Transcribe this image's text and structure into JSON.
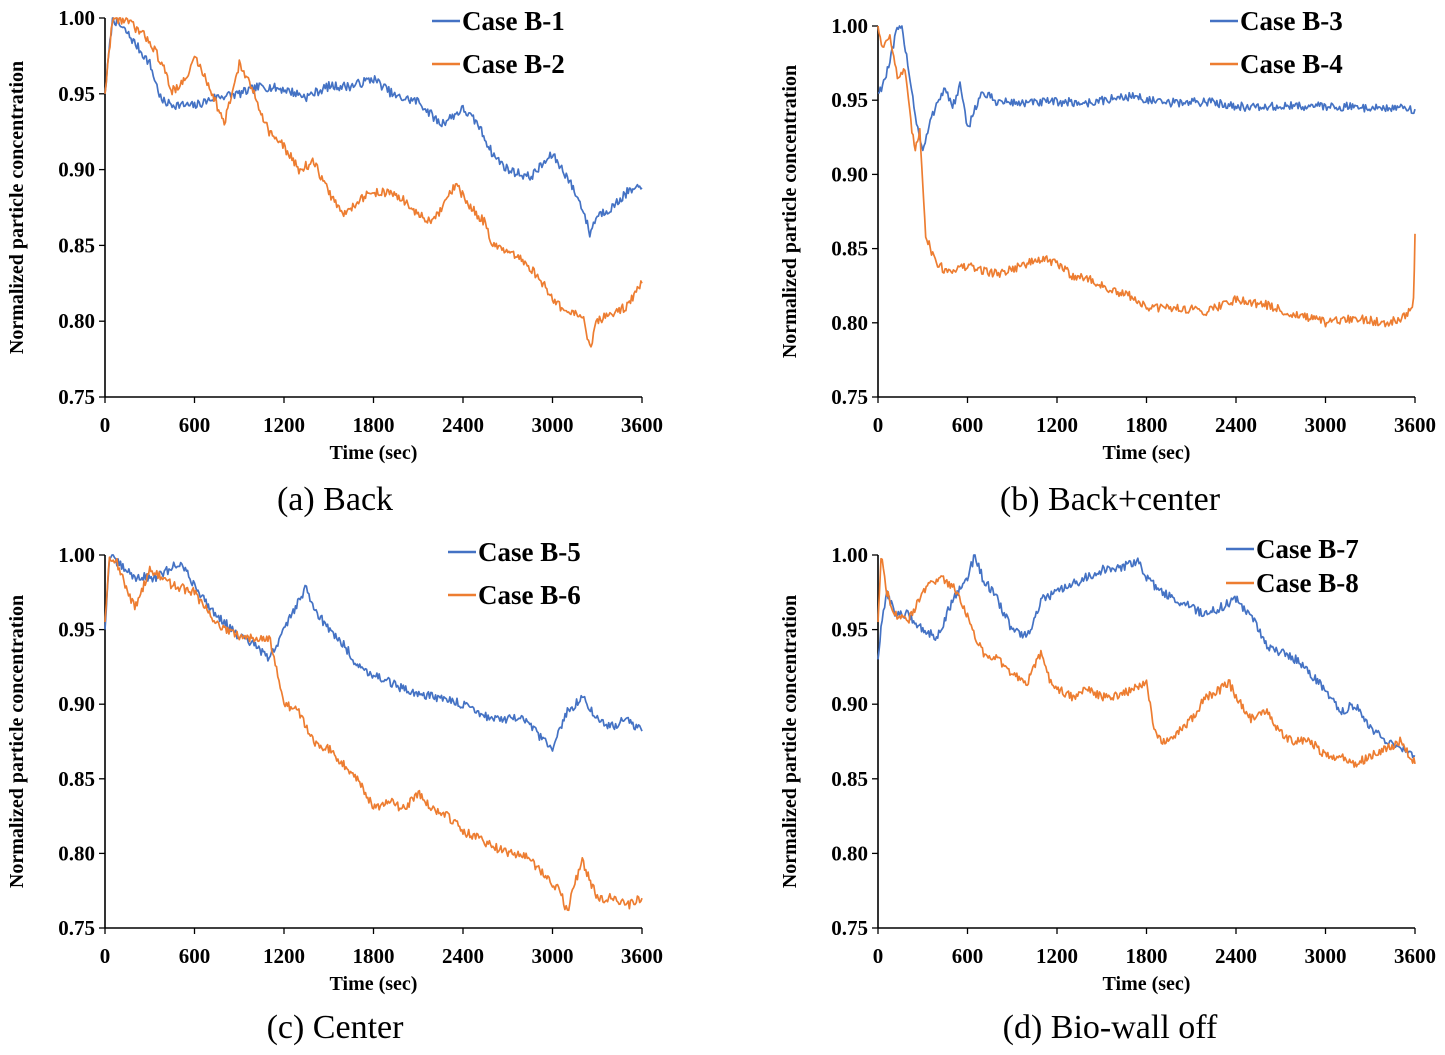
{
  "colors": {
    "blue": "#4472C4",
    "orange": "#ED7D31"
  },
  "chart_data": [
    {
      "type": "line",
      "caption": "(a) Back",
      "xlabel": "Time (sec)",
      "ylabel": "Normalized particle concentration",
      "xlim": [
        0,
        3600
      ],
      "ylim": [
        0.75,
        1.0
      ],
      "xticks": [
        "0",
        "600",
        "1200",
        "1800",
        "2400",
        "3000",
        "3600"
      ],
      "yticks": [
        "0.75",
        "0.80",
        "0.85",
        "0.90",
        "0.95",
        "1.00"
      ],
      "legend_position": "top-right",
      "series": [
        {
          "name": "Case B-1",
          "color": "#4472C4",
          "x": [
            0,
            50,
            150,
            300,
            380,
            450,
            600,
            750,
            900,
            1050,
            1200,
            1350,
            1500,
            1650,
            1800,
            1950,
            2100,
            2250,
            2400,
            2500,
            2600,
            2700,
            2850,
            3000,
            3100,
            3200,
            3250,
            3300,
            3400,
            3500,
            3600
          ],
          "y": [
            0.95,
            1.0,
            0.99,
            0.97,
            0.945,
            0.943,
            0.942,
            0.948,
            0.95,
            0.955,
            0.953,
            0.948,
            0.955,
            0.955,
            0.96,
            0.948,
            0.945,
            0.93,
            0.94,
            0.93,
            0.91,
            0.9,
            0.895,
            0.91,
            0.895,
            0.875,
            0.858,
            0.87,
            0.875,
            0.885,
            0.888
          ]
        },
        {
          "name": "Case B-2",
          "color": "#ED7D31",
          "x": [
            0,
            50,
            150,
            300,
            380,
            450,
            550,
            600,
            700,
            800,
            900,
            1000,
            1100,
            1200,
            1300,
            1400,
            1500,
            1600,
            1700,
            1800,
            1900,
            2000,
            2100,
            2200,
            2350,
            2450,
            2550,
            2600,
            2700,
            2800,
            2900,
            3000,
            3100,
            3200,
            3250,
            3300,
            3400,
            3500,
            3600
          ],
          "y": [
            0.95,
            1.0,
            0.998,
            0.985,
            0.97,
            0.952,
            0.96,
            0.975,
            0.955,
            0.93,
            0.97,
            0.95,
            0.925,
            0.915,
            0.9,
            0.905,
            0.885,
            0.87,
            0.88,
            0.885,
            0.885,
            0.88,
            0.87,
            0.865,
            0.89,
            0.875,
            0.865,
            0.85,
            0.845,
            0.84,
            0.83,
            0.815,
            0.805,
            0.805,
            0.782,
            0.8,
            0.805,
            0.81,
            0.825
          ]
        }
      ]
    },
    {
      "type": "line",
      "caption": "(b) Back+center",
      "xlabel": "Time (sec)",
      "ylabel": "Normalized particle concentration",
      "xlim": [
        0,
        3600
      ],
      "ylim": [
        0.75,
        1.0
      ],
      "xticks": [
        "0",
        "600",
        "1200",
        "1800",
        "2400",
        "3000",
        "3600"
      ],
      "yticks": [
        "0.75",
        "0.80",
        "0.85",
        "0.90",
        "0.95",
        "1.00"
      ],
      "legend_position": "top-right",
      "series": [
        {
          "name": "Case B-3",
          "color": "#4472C4",
          "x": [
            0,
            30,
            80,
            120,
            160,
            200,
            250,
            300,
            350,
            400,
            450,
            500,
            550,
            600,
            650,
            700,
            800,
            1000,
            1200,
            1400,
            1700,
            1900,
            2200,
            2500,
            2800,
            3000,
            3300,
            3600
          ],
          "y": [
            0.955,
            0.96,
            0.975,
            0.995,
            1.0,
            0.975,
            0.94,
            0.915,
            0.935,
            0.95,
            0.958,
            0.945,
            0.96,
            0.93,
            0.945,
            0.955,
            0.949,
            0.948,
            0.949,
            0.948,
            0.953,
            0.948,
            0.949,
            0.945,
            0.946,
            0.946,
            0.945,
            0.944
          ]
        },
        {
          "name": "Case B-4",
          "color": "#ED7D31",
          "x": [
            0,
            30,
            80,
            130,
            180,
            220,
            250,
            280,
            300,
            320,
            350,
            400,
            450,
            600,
            800,
            1000,
            1100,
            1200,
            1300,
            1400,
            1500,
            1600,
            1700,
            1800,
            2000,
            2200,
            2400,
            2600,
            2800,
            2900,
            3000,
            3200,
            3400,
            3550,
            3590,
            3600
          ],
          "y": [
            1.0,
            0.985,
            0.995,
            0.965,
            0.97,
            0.935,
            0.915,
            0.93,
            0.895,
            0.86,
            0.85,
            0.84,
            0.835,
            0.838,
            0.833,
            0.84,
            0.843,
            0.84,
            0.832,
            0.83,
            0.825,
            0.82,
            0.818,
            0.81,
            0.81,
            0.808,
            0.816,
            0.812,
            0.805,
            0.803,
            0.8,
            0.803,
            0.8,
            0.805,
            0.815,
            0.86
          ]
        }
      ]
    },
    {
      "type": "line",
      "caption": "(c) Center",
      "xlabel": "Time (sec)",
      "ylabel": "Normalized particle concentration",
      "xlim": [
        0,
        3600
      ],
      "ylim": [
        0.75,
        1.0
      ],
      "xticks": [
        "0",
        "600",
        "1200",
        "1800",
        "2400",
        "3000",
        "3600"
      ],
      "yticks": [
        "0.75",
        "0.80",
        "0.85",
        "0.90",
        "0.95",
        "1.00"
      ],
      "legend_position": "top-right",
      "series": [
        {
          "name": "Case B-5",
          "color": "#4472C4",
          "x": [
            0,
            30,
            80,
            200,
            350,
            500,
            600,
            700,
            800,
            900,
            1000,
            1100,
            1150,
            1200,
            1300,
            1350,
            1400,
            1500,
            1600,
            1700,
            1800,
            1900,
            2000,
            2200,
            2400,
            2600,
            2800,
            3000,
            3100,
            3200,
            3300,
            3400,
            3500,
            3600
          ],
          "y": [
            0.95,
            1.0,
            0.995,
            0.985,
            0.985,
            0.995,
            0.98,
            0.965,
            0.955,
            0.945,
            0.94,
            0.93,
            0.94,
            0.95,
            0.97,
            0.978,
            0.965,
            0.95,
            0.94,
            0.925,
            0.92,
            0.915,
            0.91,
            0.905,
            0.9,
            0.89,
            0.89,
            0.87,
            0.895,
            0.905,
            0.89,
            0.885,
            0.89,
            0.882
          ]
        },
        {
          "name": "Case B-6",
          "color": "#ED7D31",
          "x": [
            0,
            30,
            80,
            150,
            200,
            300,
            450,
            600,
            700,
            800,
            900,
            1000,
            1100,
            1150,
            1200,
            1300,
            1400,
            1500,
            1600,
            1700,
            1800,
            1900,
            2000,
            2100,
            2200,
            2300,
            2400,
            2500,
            2600,
            2700,
            2800,
            2900,
            3000,
            3050,
            3100,
            3150,
            3200,
            3300,
            3400,
            3500,
            3600
          ],
          "y": [
            0.955,
            1.0,
            0.995,
            0.975,
            0.965,
            0.99,
            0.98,
            0.975,
            0.96,
            0.95,
            0.945,
            0.945,
            0.945,
            0.925,
            0.9,
            0.895,
            0.875,
            0.87,
            0.86,
            0.85,
            0.83,
            0.835,
            0.83,
            0.84,
            0.83,
            0.825,
            0.815,
            0.81,
            0.805,
            0.8,
            0.8,
            0.79,
            0.78,
            0.775,
            0.76,
            0.78,
            0.795,
            0.77,
            0.77,
            0.765,
            0.77
          ]
        }
      ]
    },
    {
      "type": "line",
      "caption": "(d) Bio-wall off",
      "xlabel": "Time (sec)",
      "ylabel": "Normalized particle concentration",
      "xlim": [
        0,
        3600
      ],
      "ylim": [
        0.75,
        1.0
      ],
      "xticks": [
        "0",
        "600",
        "1200",
        "1800",
        "2400",
        "3000",
        "3600"
      ],
      "yticks": [
        "0.75",
        "0.80",
        "0.85",
        "0.90",
        "0.95",
        "1.00"
      ],
      "legend_position": "top-right",
      "series": [
        {
          "name": "Case B-7",
          "color": "#4472C4",
          "x": [
            0,
            20,
            60,
            120,
            200,
            300,
            400,
            500,
            600,
            650,
            700,
            800,
            900,
            1000,
            1100,
            1200,
            1300,
            1400,
            1500,
            1600,
            1700,
            1750,
            1800,
            1900,
            2000,
            2100,
            2200,
            2300,
            2400,
            2500,
            2600,
            2700,
            2800,
            2900,
            3000,
            3100,
            3200,
            3300,
            3400,
            3500,
            3600
          ],
          "y": [
            0.93,
            0.95,
            0.975,
            0.96,
            0.96,
            0.95,
            0.945,
            0.97,
            0.985,
            1.0,
            0.985,
            0.97,
            0.95,
            0.945,
            0.97,
            0.975,
            0.98,
            0.985,
            0.99,
            0.99,
            0.995,
            0.995,
            0.985,
            0.975,
            0.97,
            0.965,
            0.96,
            0.965,
            0.97,
            0.96,
            0.94,
            0.935,
            0.93,
            0.92,
            0.91,
            0.895,
            0.9,
            0.885,
            0.875,
            0.87,
            0.865
          ]
        },
        {
          "name": "Case B-8",
          "color": "#ED7D31",
          "x": [
            0,
            20,
            60,
            120,
            200,
            300,
            400,
            500,
            600,
            650,
            700,
            800,
            900,
            1000,
            1100,
            1150,
            1200,
            1300,
            1400,
            1500,
            1600,
            1700,
            1800,
            1850,
            1900,
            2000,
            2100,
            2200,
            2300,
            2350,
            2400,
            2500,
            2600,
            2700,
            2800,
            2900,
            3000,
            3100,
            3200,
            3300,
            3400,
            3500,
            3600
          ],
          "y": [
            0.955,
            1.0,
            0.975,
            0.96,
            0.955,
            0.975,
            0.985,
            0.98,
            0.96,
            0.945,
            0.935,
            0.93,
            0.92,
            0.915,
            0.935,
            0.915,
            0.91,
            0.905,
            0.91,
            0.905,
            0.905,
            0.91,
            0.915,
            0.885,
            0.875,
            0.88,
            0.89,
            0.905,
            0.91,
            0.915,
            0.905,
            0.89,
            0.895,
            0.88,
            0.875,
            0.875,
            0.865,
            0.865,
            0.86,
            0.865,
            0.87,
            0.875,
            0.86
          ]
        }
      ]
    }
  ]
}
